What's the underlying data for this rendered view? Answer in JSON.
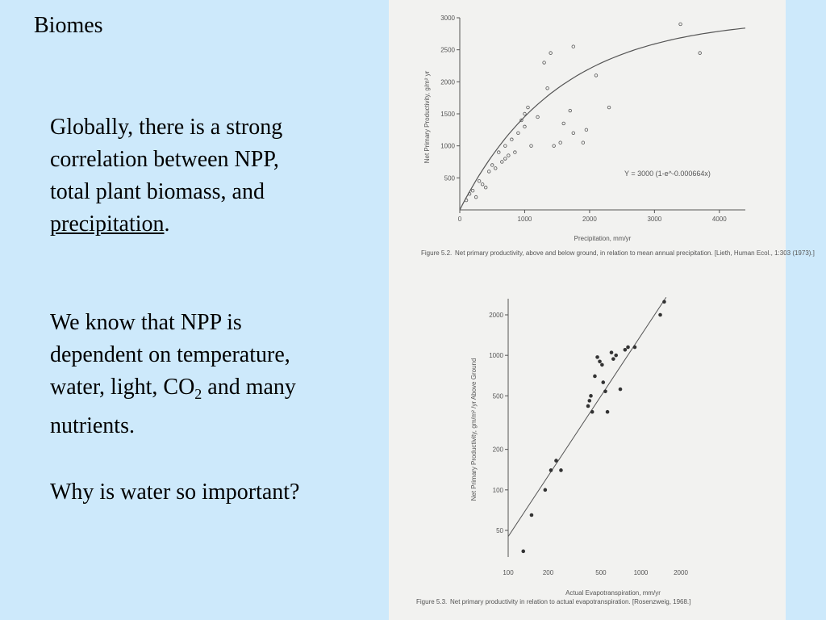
{
  "slide": {
    "title": "Biomes",
    "para1": {
      "line1": "Globally, there is a strong",
      "line2": "correlation between NPP,",
      "line3": "total plant biomass, and",
      "underlined": "precipitation",
      "after": "."
    },
    "para2": {
      "line1": "We know that NPP is",
      "line2": "dependent on temperature,",
      "line3_pre": "water, light, CO",
      "sub": "2",
      "line3_post": " and many",
      "line4": "nutrients."
    },
    "para3": "Why is water so important?"
  },
  "chart_data": [
    {
      "type": "scatter",
      "ylabel": "Net Primary Productivity, g/m² yr",
      "xlabel": "Precipitation, mm/yr",
      "xlim": [
        0,
        4400
      ],
      "ylim": [
        0,
        3000
      ],
      "xticks": [
        "0",
        "1000",
        "2000",
        "3000",
        "4000"
      ],
      "yticks": [
        "500",
        "1000",
        "1500",
        "2000",
        "2500",
        "3000"
      ],
      "equation": "Y = 3000 (1-e^-0.000664x)",
      "caption_label": "Figure 5.2.",
      "caption_text": "Net primary productivity, above and below ground, in relation to mean annual precipitation. [Lieth, Human Ecol., 1:303 (1973).]",
      "points": [
        [
          100,
          150
        ],
        [
          150,
          250
        ],
        [
          200,
          300
        ],
        [
          250,
          200
        ],
        [
          300,
          450
        ],
        [
          350,
          400
        ],
        [
          400,
          350
        ],
        [
          450,
          600
        ],
        [
          500,
          700
        ],
        [
          550,
          650
        ],
        [
          600,
          900
        ],
        [
          650,
          750
        ],
        [
          700,
          800
        ],
        [
          700,
          1000
        ],
        [
          750,
          850
        ],
        [
          800,
          1100
        ],
        [
          850,
          900
        ],
        [
          900,
          1200
        ],
        [
          950,
          1400
        ],
        [
          1000,
          1500
        ],
        [
          1000,
          1300
        ],
        [
          1050,
          1600
        ],
        [
          1100,
          1000
        ],
        [
          1200,
          1450
        ],
        [
          1300,
          2300
        ],
        [
          1350,
          1900
        ],
        [
          1400,
          2450
        ],
        [
          1450,
          1000
        ],
        [
          1550,
          1050
        ],
        [
          1600,
          1350
        ],
        [
          1700,
          1550
        ],
        [
          1750,
          2550
        ],
        [
          1750,
          1200
        ],
        [
          1900,
          1050
        ],
        [
          1950,
          1250
        ],
        [
          2100,
          2100
        ],
        [
          2300,
          1600
        ],
        [
          3400,
          2900
        ],
        [
          3700,
          2450
        ]
      ]
    },
    {
      "type": "scatter",
      "ylabel": "Net Primary Productivity, gm/m² /yr Above Ground",
      "xlabel": "Actual Evapotranspiration, mm/yr",
      "xscale": "log",
      "yscale": "log",
      "xticks": [
        "100",
        "200",
        "500",
        "1000",
        "2000"
      ],
      "yticks": [
        "50",
        "100",
        "200",
        "500",
        "1000",
        "2000"
      ],
      "caption_label": "Figure 5.3.",
      "caption_text": "Net primary productivity in relation to actual evapotranspiration. [Rosenzweig, 1968.]",
      "points": [
        [
          130,
          35
        ],
        [
          150,
          65
        ],
        [
          190,
          100
        ],
        [
          210,
          140
        ],
        [
          230,
          165
        ],
        [
          250,
          140
        ],
        [
          400,
          420
        ],
        [
          410,
          460
        ],
        [
          420,
          500
        ],
        [
          430,
          380
        ],
        [
          450,
          700
        ],
        [
          470,
          970
        ],
        [
          490,
          900
        ],
        [
          510,
          850
        ],
        [
          520,
          630
        ],
        [
          540,
          540
        ],
        [
          560,
          380
        ],
        [
          600,
          1050
        ],
        [
          620,
          940
        ],
        [
          650,
          1000
        ],
        [
          700,
          560
        ],
        [
          760,
          1100
        ],
        [
          800,
          1150
        ],
        [
          900,
          1150
        ],
        [
          1400,
          2000
        ],
        [
          1500,
          2500
        ]
      ]
    }
  ]
}
